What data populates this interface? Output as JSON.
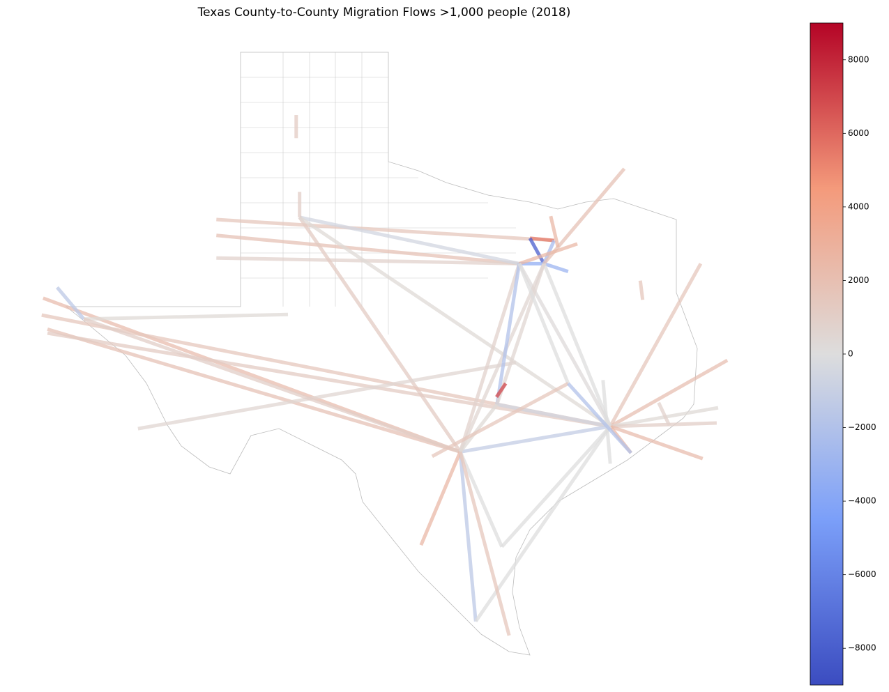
{
  "chart_data": {
    "type": "flow-map",
    "title": "Texas County-to-County Migration Flows >1,000 people (2018)",
    "clim": [
      -9000,
      9000
    ],
    "cticks": [
      {
        "value": -8000,
        "label": "−8000"
      },
      {
        "value": -6000,
        "label": "−6000"
      },
      {
        "value": -4000,
        "label": "−4000"
      },
      {
        "value": -2000,
        "label": "−2000"
      },
      0,
      2000,
      4000,
      6000,
      8000
    ],
    "colormap": [
      "#3b4cc0",
      "#7b9ff9",
      "#dddddd",
      "#f49a7b",
      "#b40426"
    ],
    "flows": [
      {
        "from": [
          -103.54,
          33.54
        ],
        "to": [
          -96.56,
          33.17
        ],
        "value": 1500
      },
      {
        "from": [
          -103.54,
          33.26
        ],
        "to": [
          -97.28,
          32.76
        ],
        "value": 1800
      },
      {
        "from": [
          -103.54,
          32.86
        ],
        "to": [
          -97.28,
          32.76
        ],
        "value": 800
      },
      {
        "from": [
          -101.82,
          33.58
        ],
        "to": [
          -97.28,
          32.76
        ],
        "value": -500
      },
      {
        "from": [
          -101.82,
          33.58
        ],
        "to": [
          -98.5,
          29.43
        ],
        "value": 1200
      },
      {
        "from": [
          -101.82,
          33.58
        ],
        "to": [
          -95.4,
          29.88
        ],
        "value": 300
      },
      {
        "from": [
          -101.82,
          34.03
        ],
        "to": [
          -101.82,
          33.58
        ],
        "value": 1000
      },
      {
        "from": [
          -101.89,
          35.39
        ],
        "to": [
          -101.89,
          34.98
        ],
        "value": 1200
      },
      {
        "from": [
          -107.12,
          32.15
        ],
        "to": [
          -98.5,
          29.43
        ],
        "value": 2200
      },
      {
        "from": [
          -107.15,
          31.85
        ],
        "to": [
          -95.4,
          29.88
        ],
        "value": 1500
      },
      {
        "from": [
          -107.03,
          31.6
        ],
        "to": [
          -98.5,
          29.43
        ],
        "value": 1800
      },
      {
        "from": [
          -107.03,
          31.53
        ],
        "to": [
          -95.4,
          29.88
        ],
        "value": 1200
      },
      {
        "from": [
          -106.83,
          32.34
        ],
        "to": [
          -106.28,
          31.78
        ],
        "value": -1500
      },
      {
        "from": [
          -106.28,
          31.78
        ],
        "to": [
          -102.06,
          31.86
        ],
        "value": 300
      },
      {
        "from": [
          -105.16,
          29.84
        ],
        "to": [
          -97.35,
          31.01
        ],
        "value": 500
      },
      {
        "from": [
          -106.28,
          31.78
        ],
        "to": [
          -98.5,
          29.43
        ],
        "value": 1000
      },
      {
        "from": [
          -97.06,
          33.21
        ],
        "to": [
          -96.56,
          33.17
        ],
        "value": 5500
      },
      {
        "from": [
          -97.06,
          33.21
        ],
        "to": [
          -96.77,
          32.76
        ],
        "value": -8000
      },
      {
        "from": [
          -97.28,
          32.76
        ],
        "to": [
          -96.77,
          32.76
        ],
        "value": -3500
      },
      {
        "from": [
          -96.77,
          32.76
        ],
        "to": [
          -96.27,
          32.62
        ],
        "value": -3000
      },
      {
        "from": [
          -96.56,
          33.17
        ],
        "to": [
          -96.77,
          32.76
        ],
        "value": -2500
      },
      {
        "from": [
          -95.11,
          34.44
        ],
        "to": [
          -96.77,
          32.76
        ],
        "value": 1800
      },
      {
        "from": [
          -96.63,
          33.6
        ],
        "to": [
          -96.48,
          33.05
        ],
        "value": 2500
      },
      {
        "from": [
          -96.08,
          33.11
        ],
        "to": [
          -97.28,
          32.76
        ],
        "value": 2500
      },
      {
        "from": [
          -94.78,
          32.46
        ],
        "to": [
          -94.73,
          32.12
        ],
        "value": 1500
      },
      {
        "from": [
          -93.53,
          32.76
        ],
        "to": [
          -95.4,
          29.88
        ],
        "value": 1500
      },
      {
        "from": [
          -92.98,
          31.05
        ],
        "to": [
          -95.4,
          29.88
        ],
        "value": 2000
      },
      {
        "from": [
          -93.17,
          30.21
        ],
        "to": [
          -95.4,
          29.88
        ],
        "value": 300
      },
      {
        "from": [
          -93.2,
          29.94
        ],
        "to": [
          -95.4,
          29.88
        ],
        "value": 1000
      },
      {
        "from": [
          -93.49,
          29.31
        ],
        "to": [
          -95.4,
          29.88
        ],
        "value": 2200
      },
      {
        "from": [
          -94.4,
          30.3
        ],
        "to": [
          -94.18,
          29.9
        ],
        "value": 800
      },
      {
        "from": [
          -95.4,
          29.88
        ],
        "to": [
          -98.5,
          29.43
        ],
        "value": -1200
      },
      {
        "from": [
          -95.4,
          29.88
        ],
        "to": [
          -97.74,
          30.27
        ],
        "value": -500
      },
      {
        "from": [
          -95.4,
          29.88
        ],
        "to": [
          -96.77,
          32.76
        ],
        "value": 0
      },
      {
        "from": [
          -95.4,
          29.88
        ],
        "to": [
          -97.28,
          32.76
        ],
        "value": 200
      },
      {
        "from": [
          -95.55,
          30.7
        ],
        "to": [
          -95.4,
          29.22
        ],
        "value": 0
      },
      {
        "from": [
          -95.4,
          29.88
        ],
        "to": [
          -94.97,
          29.41
        ],
        "value": 2500
      },
      {
        "from": [
          -98.5,
          29.43
        ],
        "to": [
          -97.28,
          32.76
        ],
        "value": 800
      },
      {
        "from": [
          -98.5,
          29.43
        ],
        "to": [
          -96.77,
          32.76
        ],
        "value": 500
      },
      {
        "from": [
          -98.5,
          29.43
        ],
        "to": [
          -97.74,
          30.27
        ],
        "value": 300
      },
      {
        "from": [
          -98.5,
          29.43
        ],
        "to": [
          -98.18,
          26.43
        ],
        "value": -1500
      },
      {
        "from": [
          -98.5,
          29.43
        ],
        "to": [
          -99.31,
          27.78
        ],
        "value": 2500
      },
      {
        "from": [
          -98.5,
          29.43
        ],
        "to": [
          -97.64,
          27.75
        ],
        "value": 0
      },
      {
        "from": [
          -98.18,
          26.43
        ],
        "to": [
          -95.4,
          29.88
        ],
        "value": 0
      },
      {
        "from": [
          -98.5,
          29.43
        ],
        "to": [
          -97.49,
          26.18
        ],
        "value": 1500
      },
      {
        "from": [
          -97.64,
          27.75
        ],
        "to": [
          -95.4,
          29.88
        ],
        "value": 0
      },
      {
        "from": [
          -97.74,
          30.27
        ],
        "to": [
          -97.28,
          32.76
        ],
        "value": -2000
      },
      {
        "from": [
          -97.74,
          30.27
        ],
        "to": [
          -96.77,
          32.76
        ],
        "value": 500
      },
      {
        "from": [
          -97.75,
          30.4
        ],
        "to": [
          -97.56,
          30.64
        ],
        "value": 7000
      },
      {
        "from": [
          -97.28,
          32.76
        ],
        "to": [
          -96.27,
          30.64
        ],
        "value": 0
      },
      {
        "from": [
          -99.08,
          29.35
        ],
        "to": [
          -96.27,
          30.64
        ],
        "value": 1500
      },
      {
        "from": [
          -96.27,
          30.64
        ],
        "to": [
          -94.97,
          29.41
        ],
        "value": -2000
      }
    ]
  }
}
